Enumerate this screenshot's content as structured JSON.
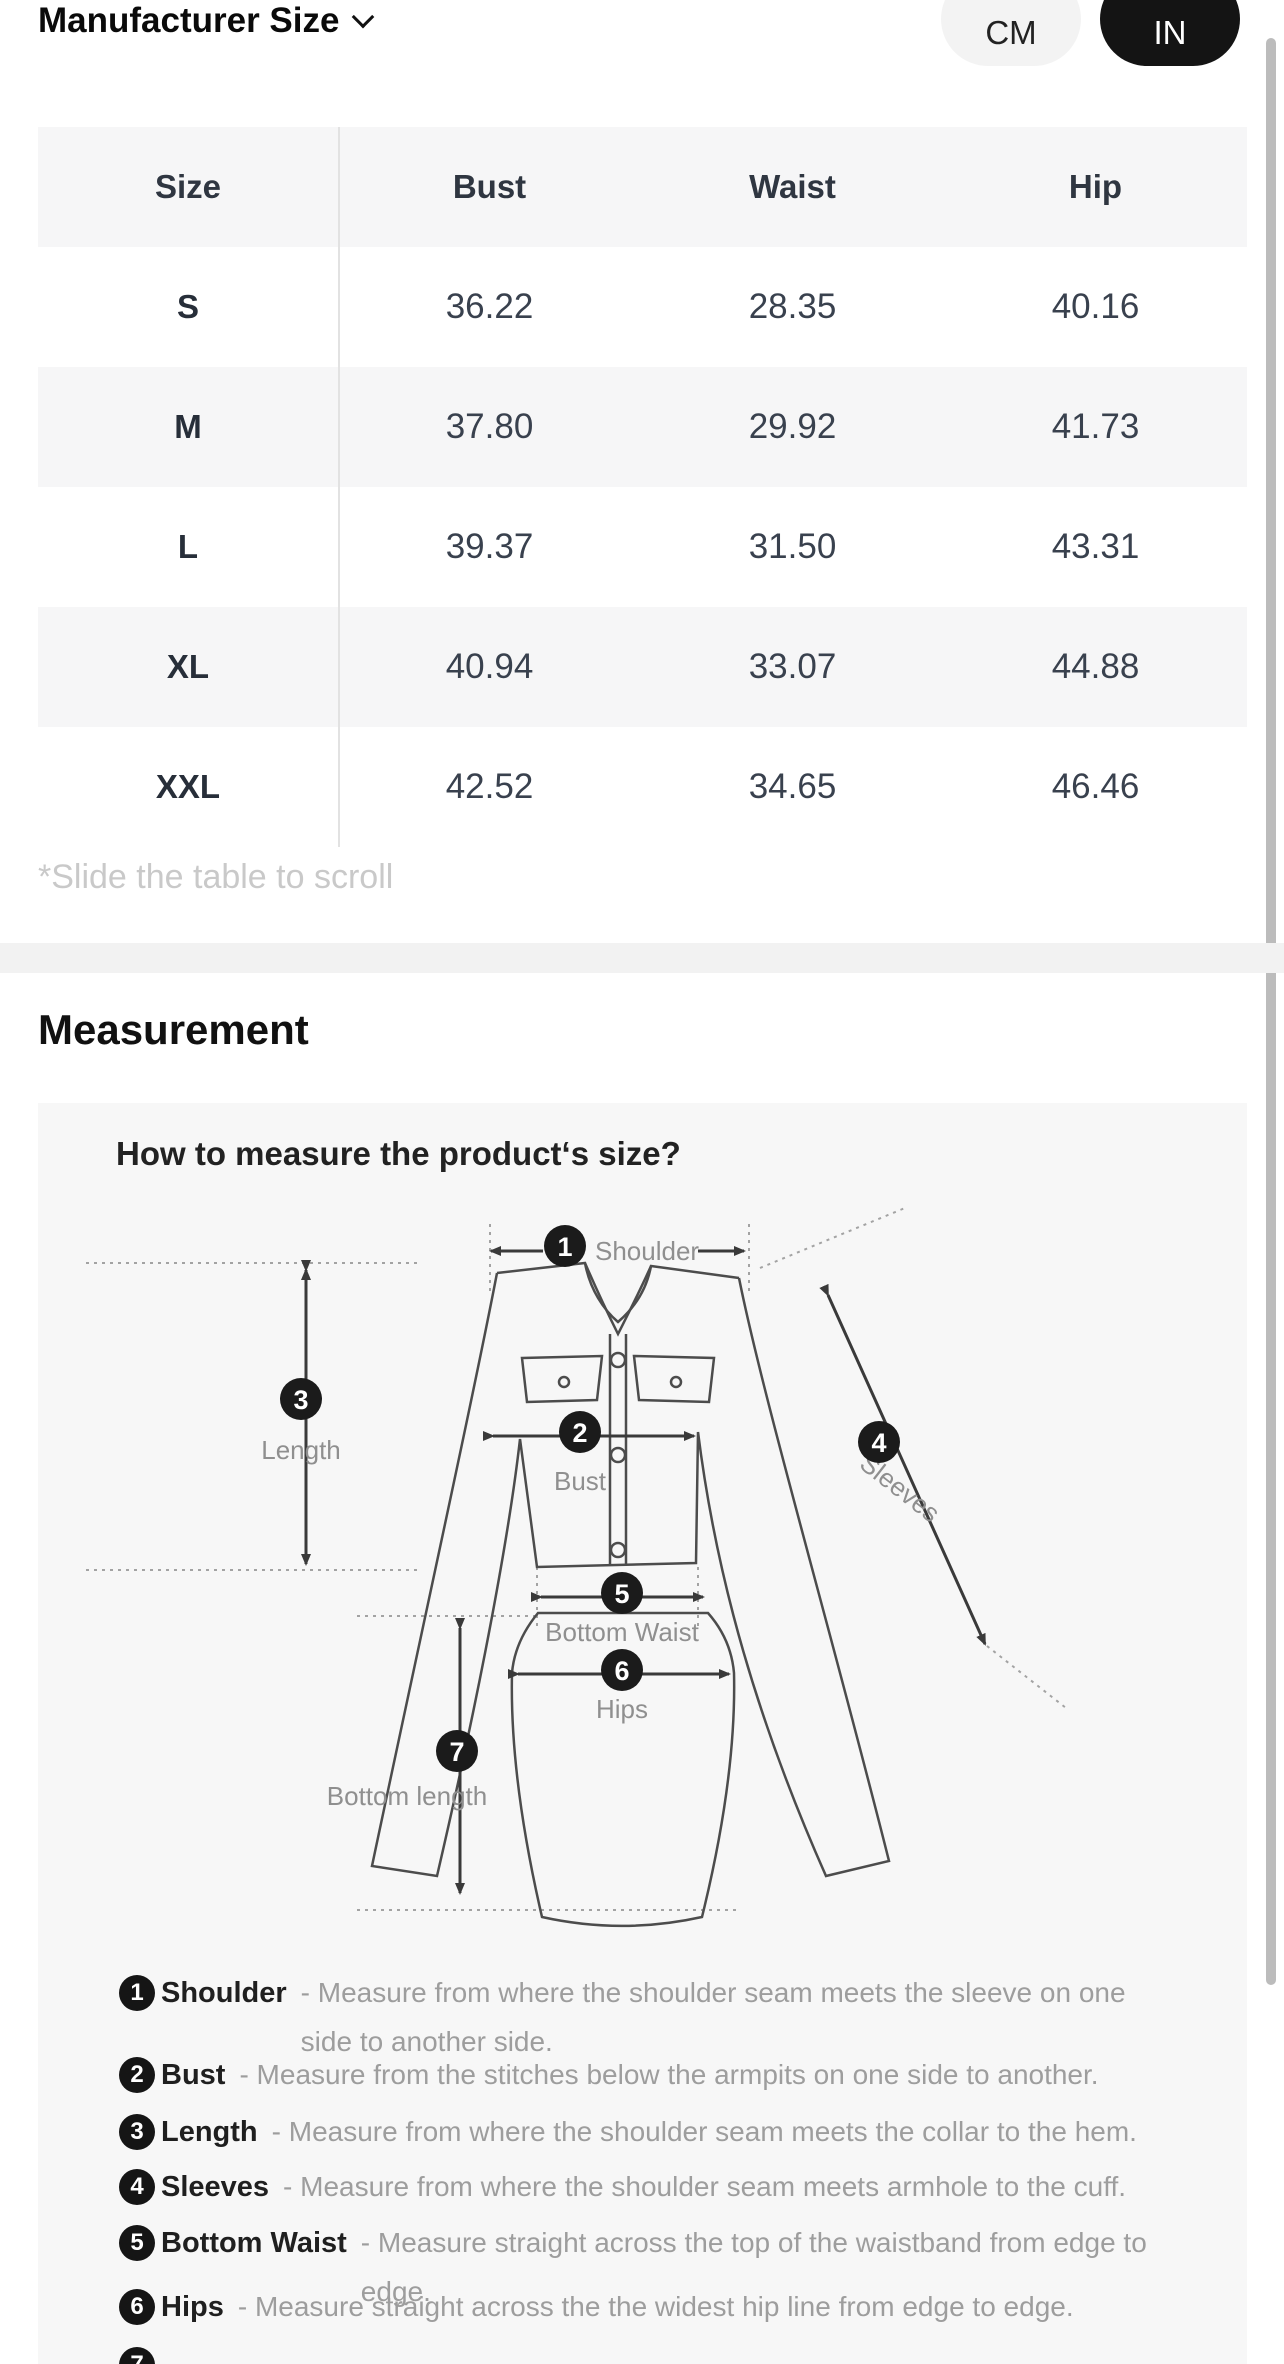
{
  "header": {
    "title": "Manufacturer Size",
    "unit_cm": "CM",
    "unit_in": "IN",
    "active_unit": "IN"
  },
  "size_table": {
    "columns": [
      "Size",
      "Bust",
      "Waist",
      "Hip"
    ],
    "rows": [
      {
        "size": "S",
        "bust": "36.22",
        "waist": "28.35",
        "hip": "40.16"
      },
      {
        "size": "M",
        "bust": "37.80",
        "waist": "29.92",
        "hip": "41.73"
      },
      {
        "size": "L",
        "bust": "39.37",
        "waist": "31.50",
        "hip": "43.31"
      },
      {
        "size": "XL",
        "bust": "40.94",
        "waist": "33.07",
        "hip": "44.88"
      },
      {
        "size": "XXL",
        "bust": "42.52",
        "waist": "34.65",
        "hip": "46.46"
      }
    ],
    "note": "*Slide the table to scroll"
  },
  "measurement": {
    "title": "Measurement",
    "diagram_title": "How to measure the product‘s size?",
    "points": [
      {
        "num": "1",
        "label": "Shoulder"
      },
      {
        "num": "2",
        "label": "Bust"
      },
      {
        "num": "3",
        "label": "Length"
      },
      {
        "num": "4",
        "label": "Sleeves"
      },
      {
        "num": "5",
        "label": "Bottom Waist"
      },
      {
        "num": "6",
        "label": "Hips"
      },
      {
        "num": "7",
        "label": "Bottom length"
      }
    ],
    "instructions": [
      {
        "num": "1",
        "label": "Shoulder",
        "desc": "- Measure from where the shoulder seam meets the sleeve on one side to another side."
      },
      {
        "num": "2",
        "label": "Bust",
        "desc": "- Measure from the stitches below the armpits on one side to another."
      },
      {
        "num": "3",
        "label": "Length",
        "desc": "- Measure from where the shoulder seam meets the collar to the hem."
      },
      {
        "num": "4",
        "label": "Sleeves",
        "desc": "- Measure from where the shoulder seam meets armhole to the cuff."
      },
      {
        "num": "5",
        "label": "Bottom Waist",
        "desc": "- Measure straight across the top of the waistband from edge to edge."
      },
      {
        "num": "6",
        "label": "Hips",
        "desc": "- Measure straight across the the widest hip line from edge to edge."
      },
      {
        "num": "7",
        "label": "",
        "desc": ""
      }
    ]
  },
  "colors": {
    "active_pill_bg": "#141414",
    "inactive_pill_bg": "#f3f3f3",
    "row_alt_bg": "#f6f6f7",
    "diagram_bg": "#f7f7f7",
    "text_dark": "#39414e",
    "text_gray": "#9d9d9d"
  }
}
